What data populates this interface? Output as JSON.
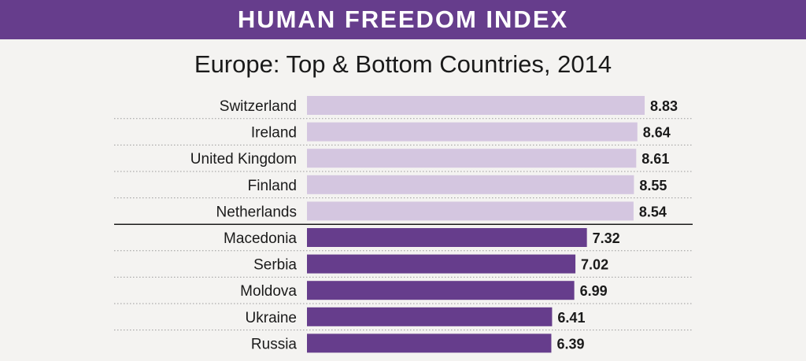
{
  "header": {
    "title": "HUMAN FREEDOM INDEX"
  },
  "colors": {
    "banner": "#663d8c",
    "top_bar": "#d4c6e0",
    "bottom_bar": "#663d8c",
    "background": "#f4f3f1"
  },
  "chart_data": {
    "type": "bar",
    "orientation": "horizontal",
    "title": "Europe: Top & Bottom Countries, 2014",
    "categories": [
      "Switzerland",
      "Ireland",
      "United Kingdom",
      "Finland",
      "Netherlands",
      "Macedonia",
      "Serbia",
      "Moldova",
      "Ukraine",
      "Russia"
    ],
    "values": [
      8.83,
      8.64,
      8.61,
      8.55,
      8.54,
      7.32,
      7.02,
      6.99,
      6.41,
      6.39
    ],
    "value_labels": [
      "8.83",
      "8.64",
      "8.61",
      "8.55",
      "8.54",
      "7.32",
      "7.02",
      "6.99",
      "6.41",
      "6.39"
    ],
    "groups": [
      {
        "name": "top",
        "count": 5,
        "color": "#d4c6e0"
      },
      {
        "name": "bottom",
        "count": 5,
        "color": "#663d8c"
      }
    ],
    "xlim": [
      0,
      8.83
    ],
    "grid": false,
    "legend": "none"
  }
}
